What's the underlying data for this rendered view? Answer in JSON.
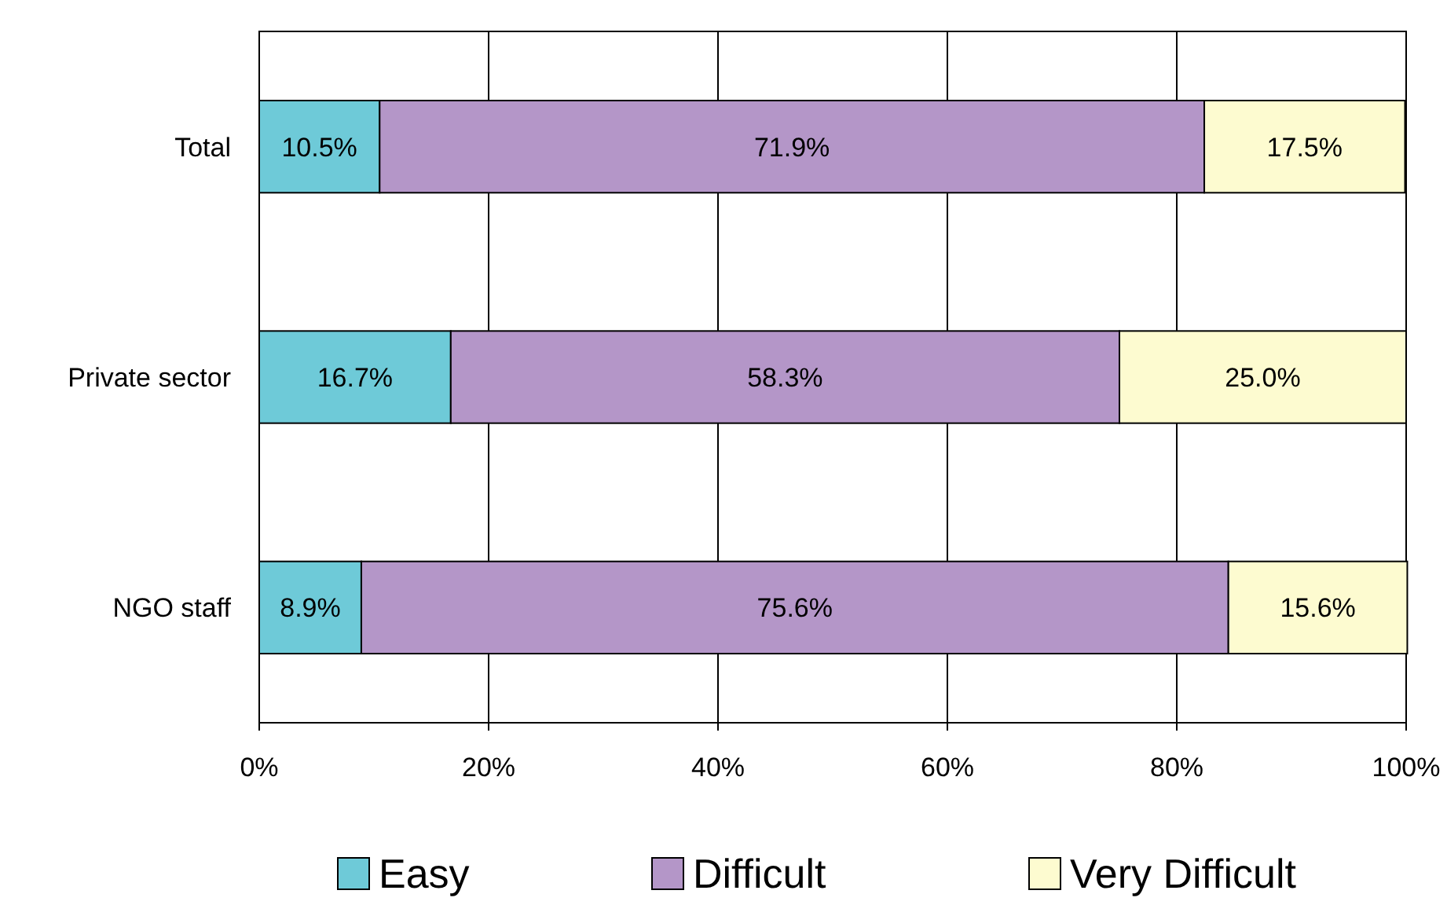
{
  "chart_data": {
    "type": "bar",
    "orientation": "horizontal",
    "stacked": true,
    "categories": [
      "Total",
      "Private sector",
      "NGO staff"
    ],
    "series": [
      {
        "name": "Easy",
        "color": "#6ecad8",
        "values": [
          10.5,
          16.7,
          8.9
        ],
        "value_labels": [
          "10.5%",
          "16.7%",
          "8.9%"
        ]
      },
      {
        "name": "Difficult",
        "color": "#b496c8",
        "values": [
          71.9,
          58.3,
          75.6
        ],
        "value_labels": [
          "71.9%",
          "58.3%",
          "75.6%"
        ]
      },
      {
        "name": "Very Difficult",
        "color": "#fdfbd0",
        "values": [
          17.5,
          25.0,
          15.6
        ],
        "value_labels": [
          "17.5%",
          "25.0%",
          "15.6%"
        ]
      }
    ],
    "xlim": [
      0,
      100
    ],
    "xticks": [
      {
        "value": 0,
        "label": "0%"
      },
      {
        "value": 20,
        "label": "20%"
      },
      {
        "value": 40,
        "label": "40%"
      },
      {
        "value": 60,
        "label": "60%"
      },
      {
        "value": 80,
        "label": "80%"
      },
      {
        "value": 100,
        "label": "100%"
      }
    ],
    "grid": "x",
    "legend": "bottom"
  }
}
